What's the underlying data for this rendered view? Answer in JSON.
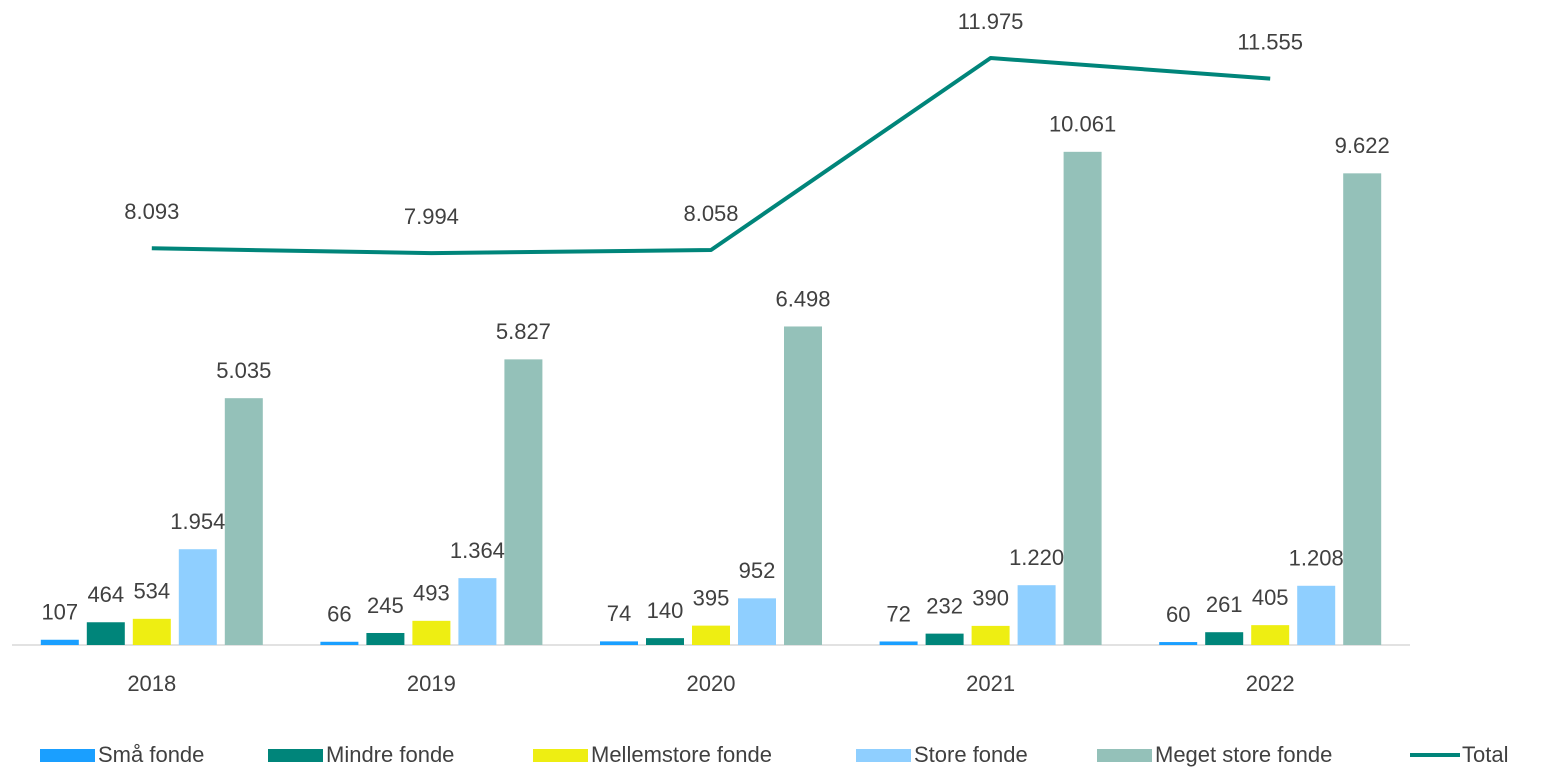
{
  "chart_data": {
    "type": "bar",
    "categories": [
      "2018",
      "2019",
      "2020",
      "2021",
      "2022"
    ],
    "series": [
      {
        "name": "Små fonde",
        "color": "#1a9fff",
        "values": [
          107,
          66,
          74,
          72,
          60
        ],
        "value_labels": [
          "107",
          "66",
          "74",
          "72",
          "60"
        ]
      },
      {
        "name": "Mindre fonde",
        "color": "#00857a",
        "values": [
          464,
          245,
          140,
          232,
          261
        ],
        "value_labels": [
          "464",
          "245",
          "140",
          "232",
          "261"
        ]
      },
      {
        "name": "Mellemstore fonde",
        "color": "#eeee12",
        "values": [
          534,
          493,
          395,
          390,
          405
        ],
        "value_labels": [
          "534",
          "493",
          "395",
          "390",
          "405"
        ]
      },
      {
        "name": "Store fonde",
        "color": "#8fcfff",
        "values": [
          1954,
          1364,
          952,
          1220,
          1208
        ],
        "value_labels": [
          "1.954",
          "1.364",
          "952",
          "1.220",
          "1.208"
        ]
      },
      {
        "name": "Meget store fonde",
        "color": "#94c1b9",
        "values": [
          5035,
          5827,
          6498,
          10061,
          9622
        ],
        "value_labels": [
          "5.035",
          "5.827",
          "6.498",
          "10.061",
          "9.622"
        ]
      },
      {
        "name": "Total",
        "type": "line",
        "color": "#00857a",
        "values": [
          8093,
          7994,
          8058,
          11975,
          11555
        ],
        "value_labels": [
          "8.093",
          "7.994",
          "8.058",
          "11.975",
          "11.555"
        ]
      }
    ]
  }
}
